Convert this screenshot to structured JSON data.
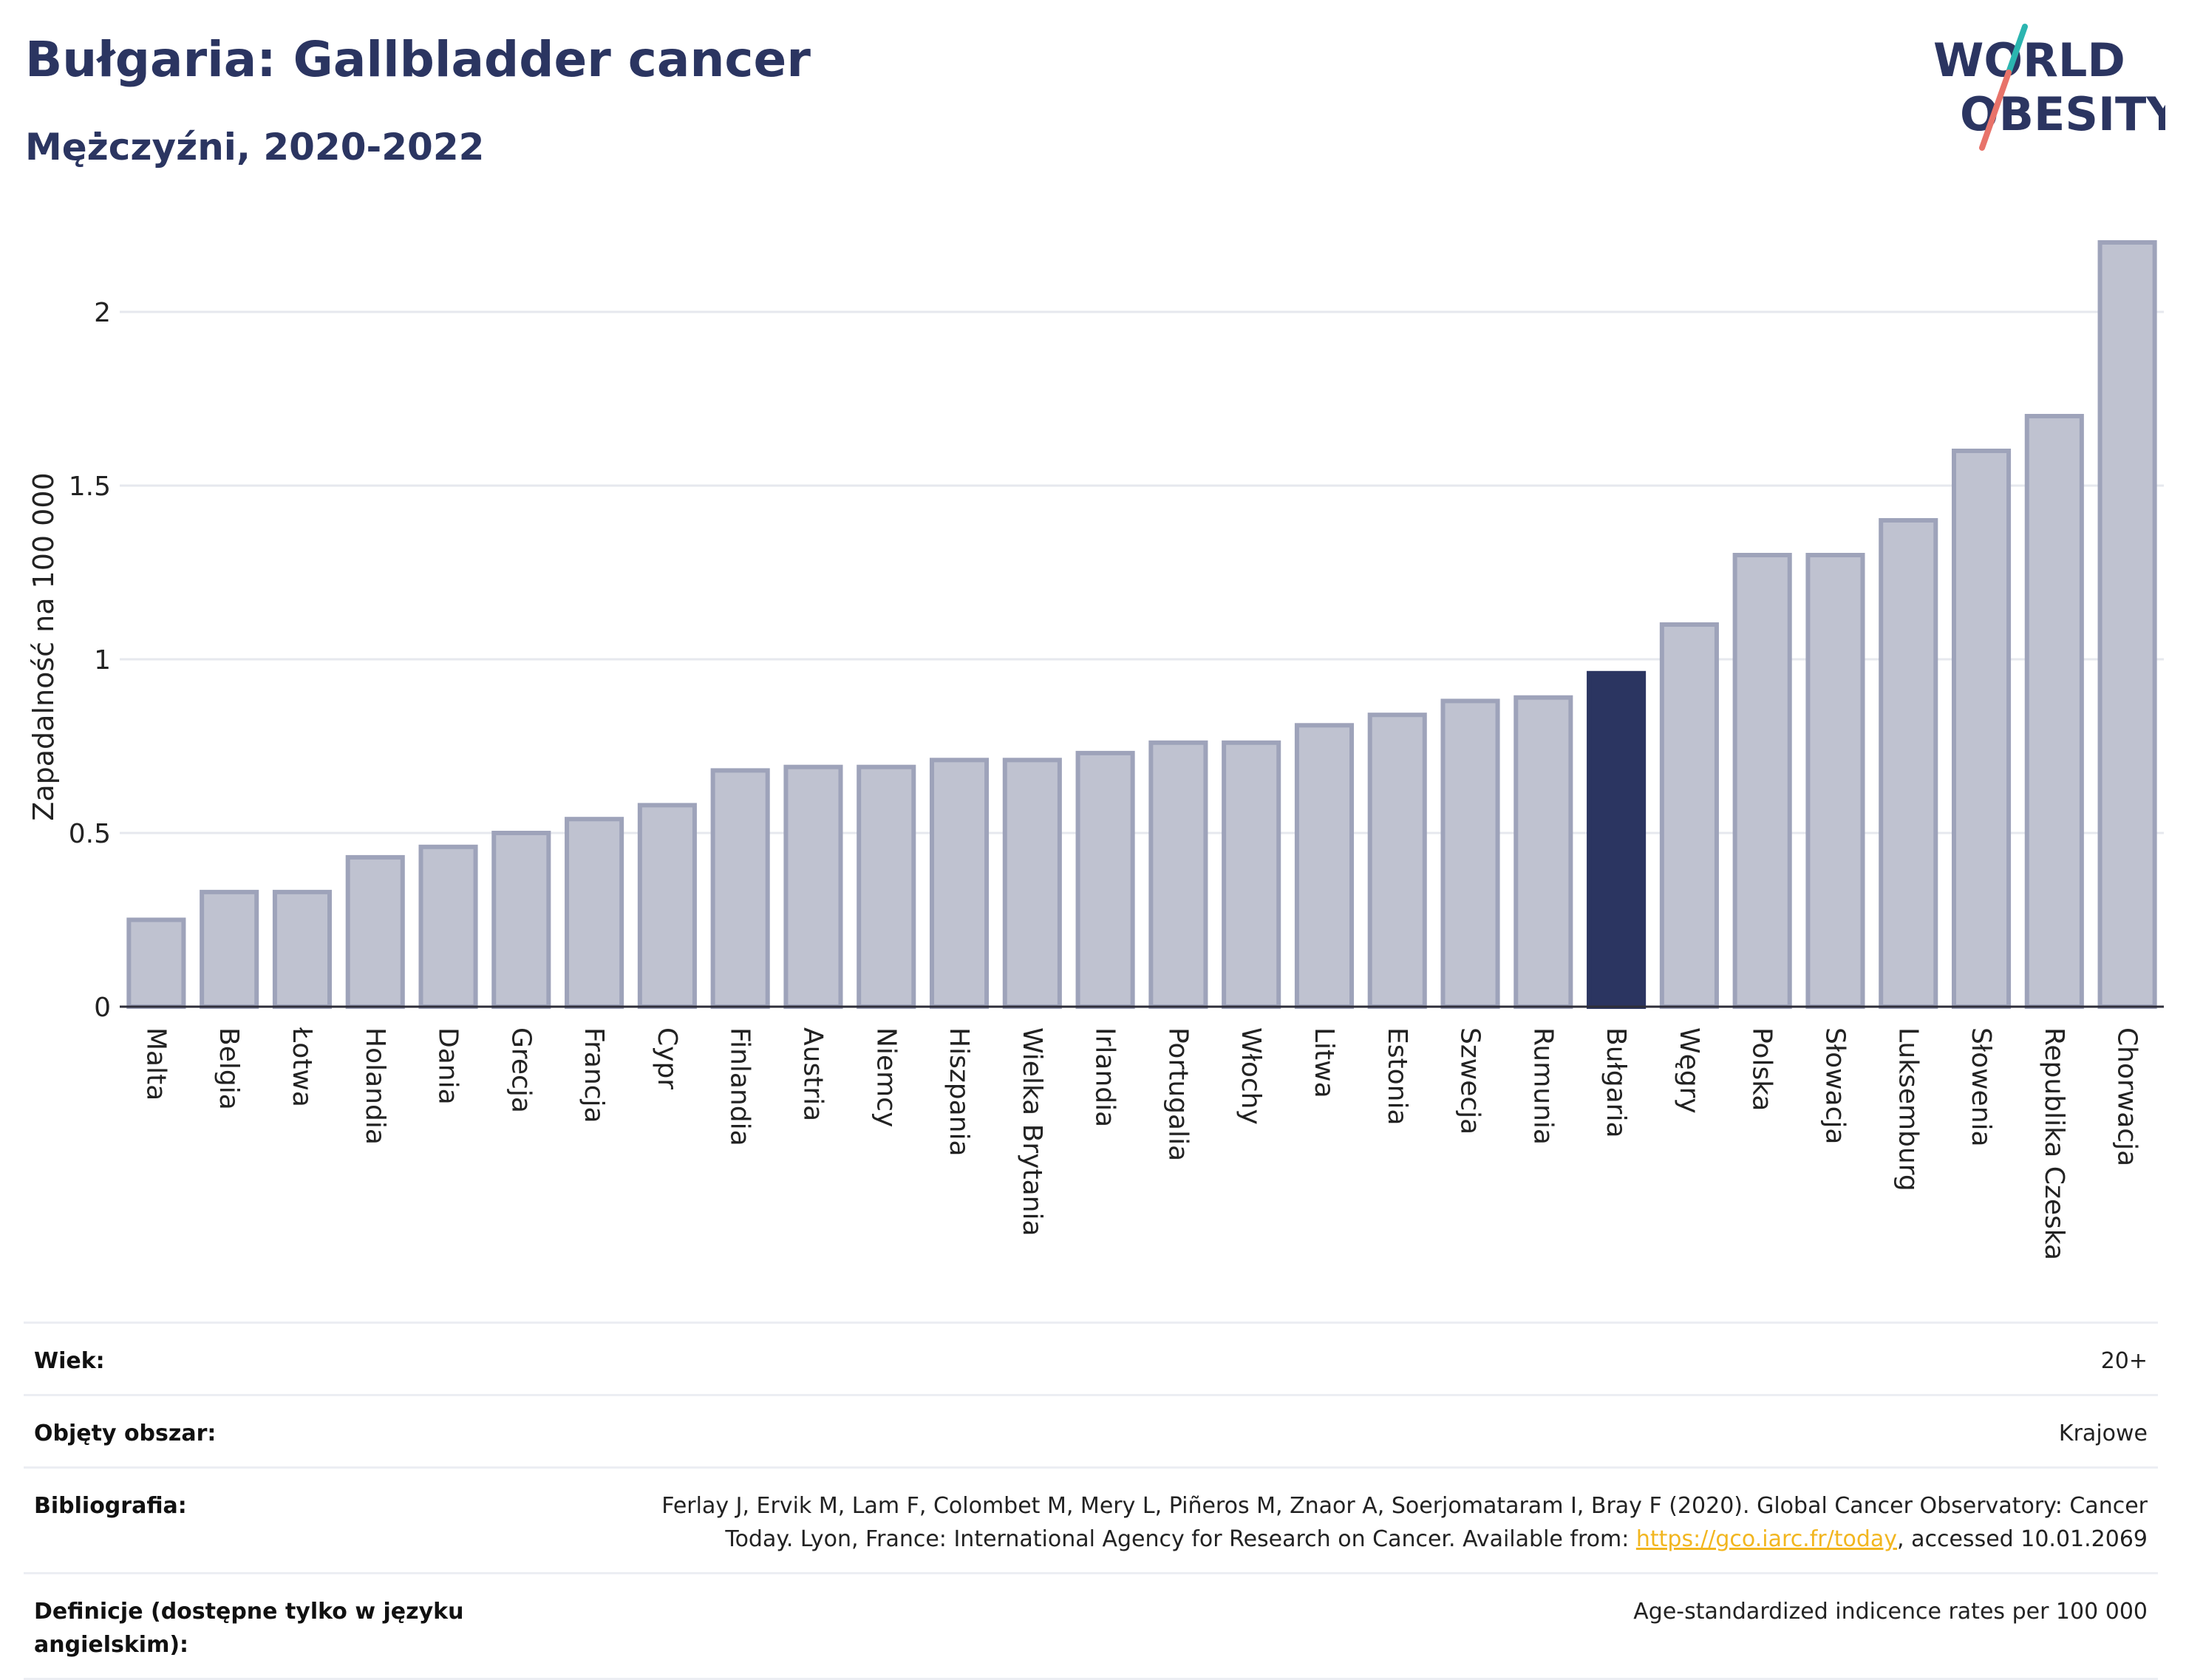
{
  "header": {
    "title": "Bułgaria: Gallbladder cancer",
    "subtitle": "Mężczyźni, 2020-2022"
  },
  "logo": {
    "line1": "WORLD",
    "line2": "OBESITY",
    "icon": "world-obesity-logo"
  },
  "colors": {
    "bar_default": "#bfc2d0",
    "bar_border": "#9ea3ba",
    "bar_highlight": "#2b3561",
    "title": "#2b3561",
    "link": "#f2b61f"
  },
  "chart_data": {
    "type": "bar",
    "ylabel": "Zapadalność na 100 000",
    "ylim": [
      0,
      2.2
    ],
    "yticks": [
      0,
      0.5,
      1,
      1.5,
      2
    ],
    "ytick_labels": [
      "0",
      "0.5",
      "1",
      "1.5",
      "2"
    ],
    "grid": true,
    "highlight": "Bułgaria",
    "categories": [
      "Malta",
      "Belgia",
      "Łotwa",
      "Holandia",
      "Dania",
      "Grecja",
      "Francja",
      "Cypr",
      "Finlandia",
      "Austria",
      "Niemcy",
      "Hiszpania",
      "Wielka Brytania",
      "Irlandia",
      "Portugalia",
      "Włochy",
      "Litwa",
      "Estonia",
      "Szwecja",
      "Rumunia",
      "Bułgaria",
      "Węgry",
      "Polska",
      "Słowacja",
      "Luksemburg",
      "Słowenia",
      "Republika Czeska",
      "Chorwacja"
    ],
    "values": [
      0.25,
      0.33,
      0.33,
      0.43,
      0.46,
      0.5,
      0.54,
      0.58,
      0.68,
      0.69,
      0.69,
      0.71,
      0.71,
      0.73,
      0.76,
      0.76,
      0.81,
      0.84,
      0.88,
      0.89,
      0.96,
      1.1,
      1.3,
      1.3,
      1.4,
      1.6,
      1.7,
      2.2
    ]
  },
  "meta": {
    "rows": [
      {
        "label": "Wiek:",
        "value": "20+"
      },
      {
        "label": "Objęty obszar:",
        "value": "Krajowe"
      },
      {
        "label": "Bibliografia:",
        "value_line1": "Ferlay J, Ervik M, Lam F, Colombet M, Mery L, Piñeros M, Znaor A, Soerjomataram I, Bray F (2020). Global Cancer Observatory: Cancer",
        "value_line2_prefix": "Today. Lyon, France: International Agency for Research on Cancer. Available from: ",
        "link": "https://gco.iarc.fr/today",
        "value_line2_suffix": ", accessed 10.01.2069"
      },
      {
        "label": "Definicje (dostępne tylko w języku angielskim):",
        "value": "Age-standardized indicence rates per 100 000"
      }
    ]
  }
}
